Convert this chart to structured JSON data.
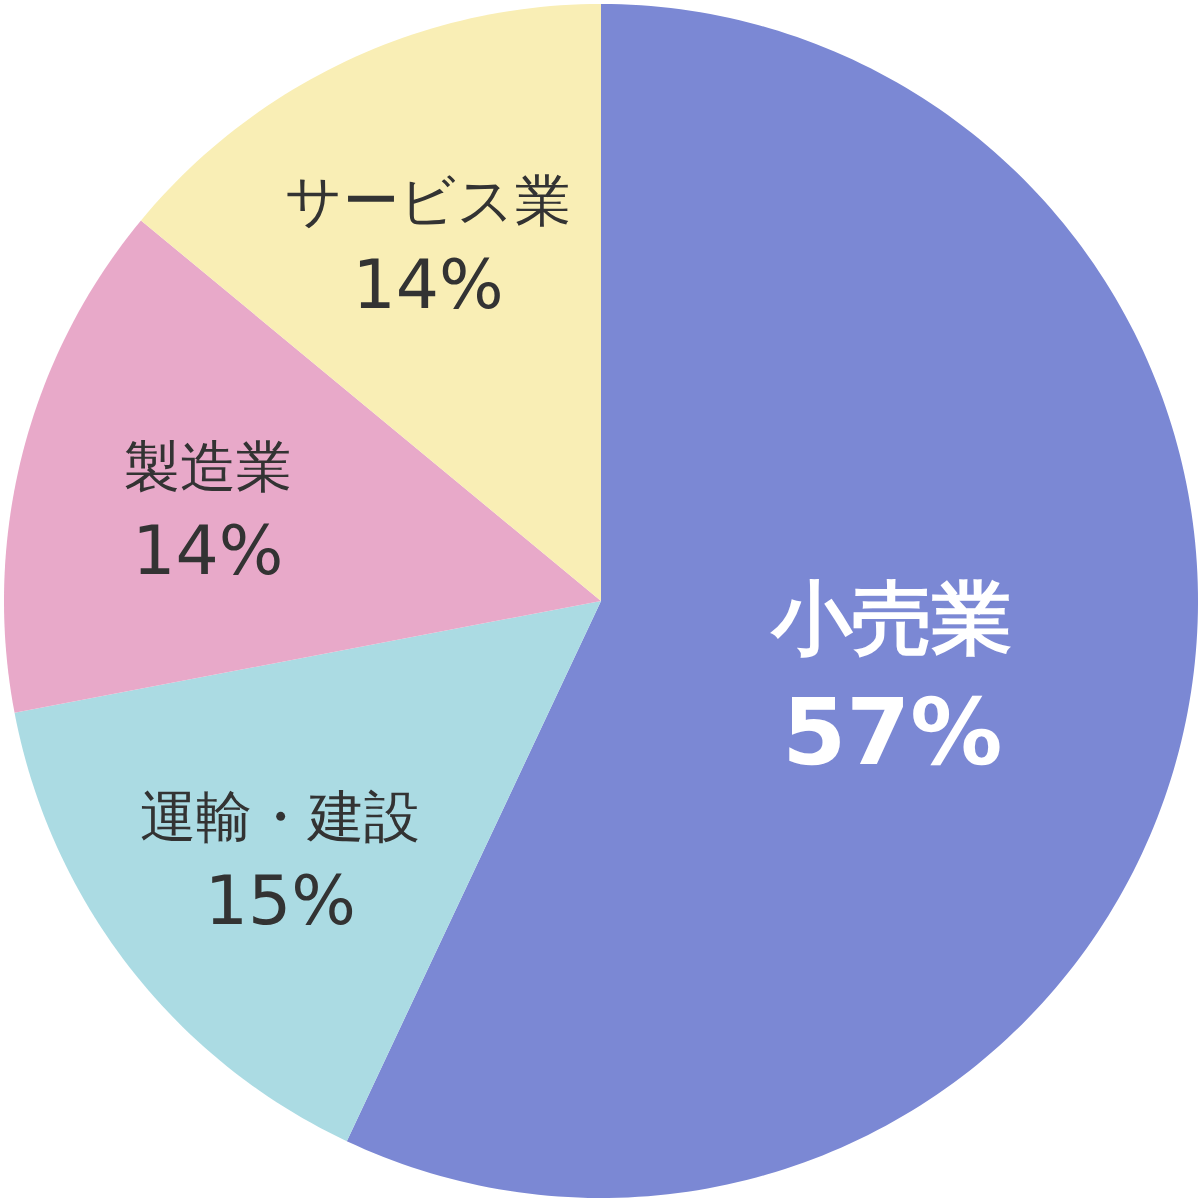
{
  "chart_data": {
    "type": "pie",
    "categories": [
      "小売業",
      "運輸・建設",
      "製造業",
      "サービス業"
    ],
    "values": [
      57,
      15,
      14,
      14
    ],
    "colors": [
      "#7b88d4",
      "#abdbe3",
      "#e8a9c9",
      "#f9eeb5"
    ],
    "value_labels": [
      "57%",
      "15%",
      "14%",
      "14%"
    ]
  }
}
